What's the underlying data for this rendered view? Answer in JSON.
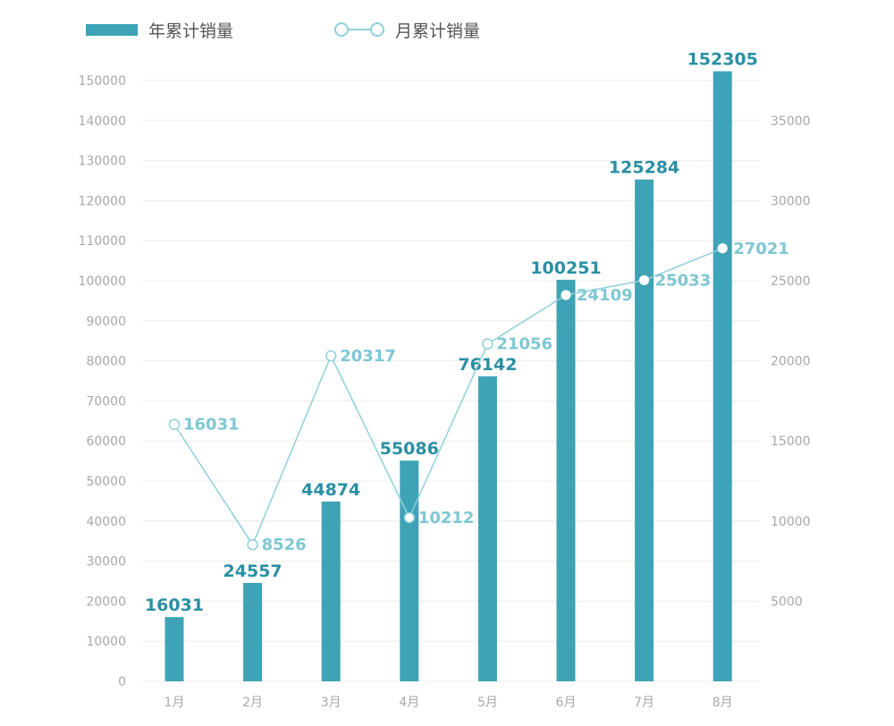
{
  "colors": {
    "bar": "#3ea3b6",
    "bar_label": "#2a8fa3",
    "line": "#8fd0d9",
    "line_label": "#7fc7d2",
    "axis_text": "#a8a8a8",
    "grid": "#ececec"
  },
  "legend": {
    "bar_label": "年累计销量",
    "line_label": "月累计销量"
  },
  "chart_data": {
    "type": "bar",
    "title": "",
    "categories": [
      "1月",
      "2月",
      "3月",
      "4月",
      "5月",
      "6月",
      "7月",
      "8月"
    ],
    "series": [
      {
        "name": "年累计销量",
        "type": "bar",
        "axis": "left",
        "values": [
          16031,
          24557,
          44874,
          55086,
          76142,
          100251,
          125284,
          152305
        ]
      },
      {
        "name": "月累计销量",
        "type": "line",
        "axis": "right",
        "values": [
          16031,
          8526,
          20317,
          10212,
          21056,
          24109,
          25033,
          27021
        ]
      }
    ],
    "left_axis": {
      "ylim": [
        0,
        150000
      ],
      "ticks": [
        0,
        10000,
        20000,
        30000,
        40000,
        50000,
        60000,
        70000,
        80000,
        90000,
        100000,
        110000,
        120000,
        130000,
        140000,
        150000
      ]
    },
    "right_axis": {
      "ylim": [
        0,
        37500
      ],
      "ticks": [
        5000,
        10000,
        15000,
        20000,
        25000,
        30000,
        35000
      ]
    },
    "grid": true,
    "legend_position": "top-left"
  }
}
